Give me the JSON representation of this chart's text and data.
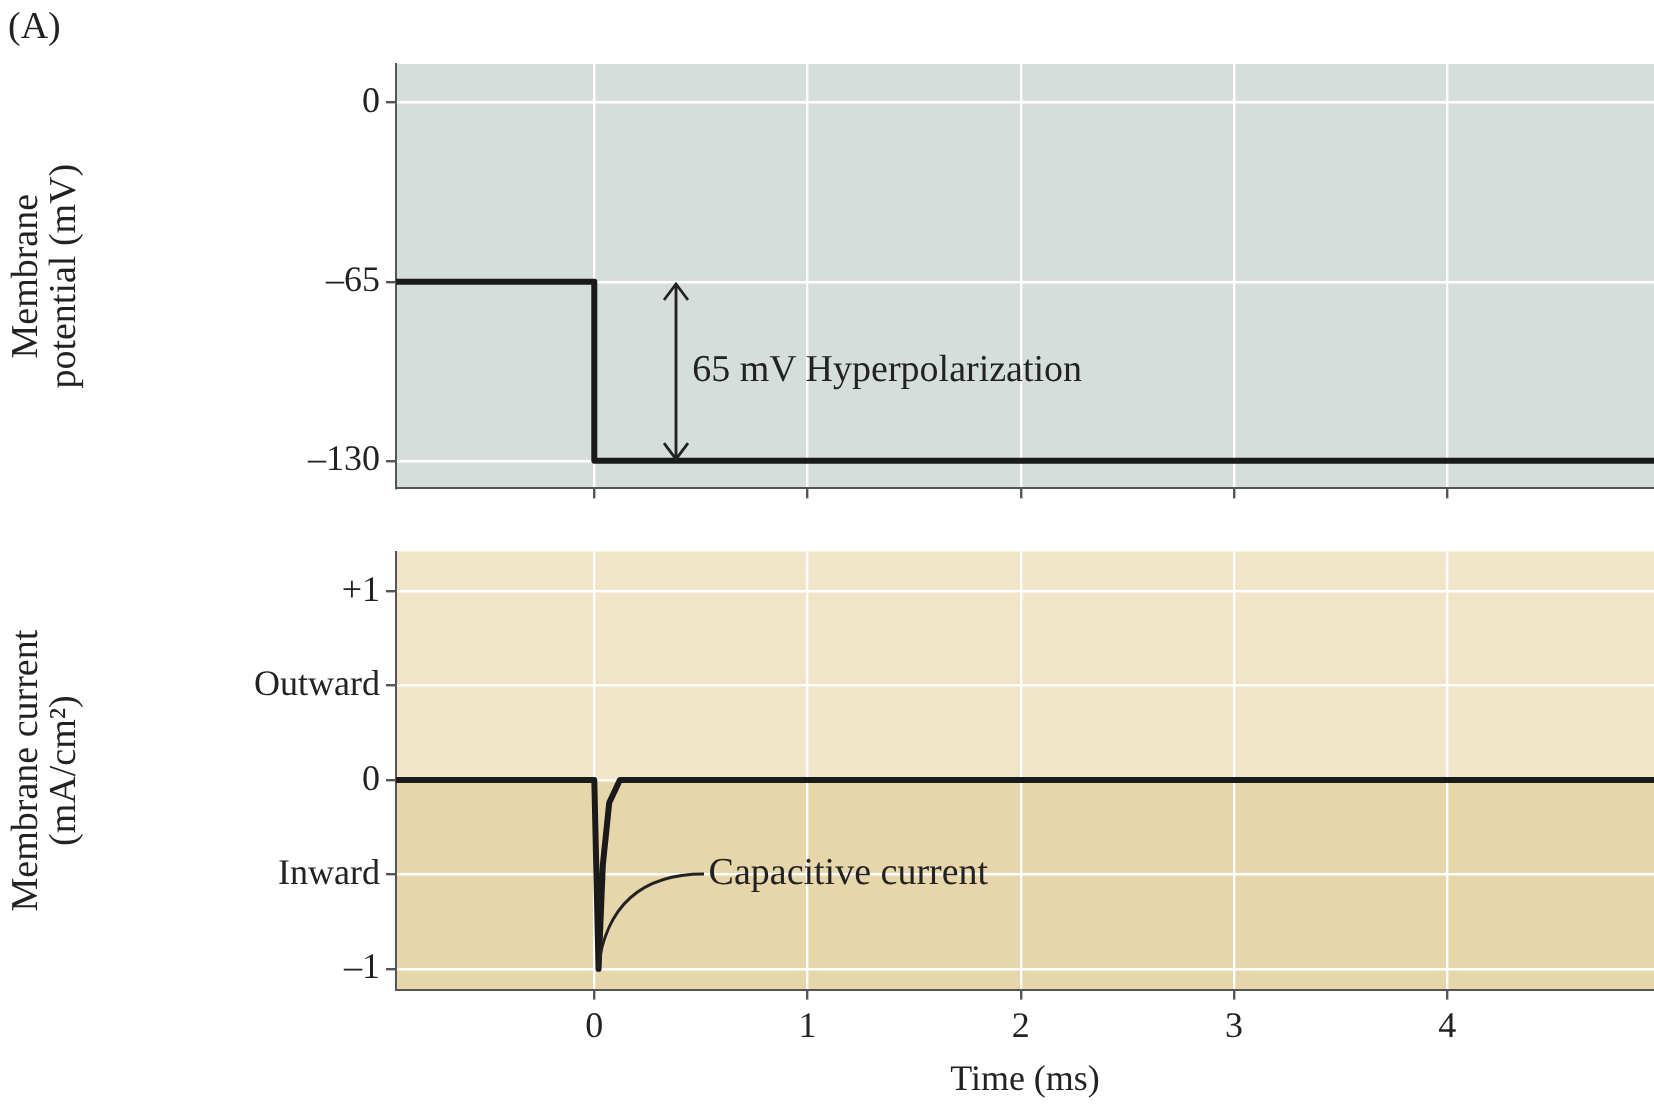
{
  "chart_data": [
    {
      "type": "line",
      "ylabel": "Membrane potential (mV)",
      "xlim": [
        -0.93,
        4.97
      ],
      "xticks": [
        0,
        1,
        2,
        3,
        4
      ],
      "ylim": [
        -140,
        14
      ],
      "yticks": [
        0,
        {
          "value": -65,
          "label": "–65"
        },
        {
          "value": -130,
          "label": "–130"
        }
      ],
      "tick_labels": "y",
      "grid": true,
      "legend": false,
      "marker": "none",
      "line_style": "solid",
      "series": [
        {
          "color": "#1a1a1a",
          "x": [
            -0.93,
            0,
            0,
            4.97
          ],
          "values": [
            -65,
            -65,
            -130,
            -130
          ]
        }
      ],
      "annotations": [
        "(A)",
        "65 mV Hyperpolarization"
      ]
    },
    {
      "type": "line",
      "xlabel": "Time (ms)",
      "ylabel": "Membrane current (mA/cm²)",
      "xlim": [
        -0.93,
        4.97
      ],
      "xticks": [
        0,
        1,
        2,
        3,
        4
      ],
      "ylim": [
        -1.11,
        1.21
      ],
      "yticks": [
        {
          "value": 1,
          "label": "+1"
        },
        {
          "value": 0.5,
          "label": "Outward"
        },
        0,
        {
          "value": -0.5,
          "label": "Inward"
        },
        {
          "value": -1,
          "label": "–1"
        }
      ],
      "grid": true,
      "legend": false,
      "marker": "none",
      "line_style": "solid",
      "bands": [
        {
          "axis": "y",
          "from": -1.11,
          "to": 0,
          "color": "#e6d6aa"
        }
      ],
      "series": [
        {
          "color": "#1a1a1a",
          "x": [
            -0.93,
            0,
            0.02,
            0.04,
            0.07,
            0.12,
            4.97
          ],
          "values": [
            0,
            0,
            -1,
            -0.45,
            -0.12,
            0,
            0
          ]
        }
      ],
      "annotations": [
        {
          "text": "Capacitive current",
          "x": 0.02,
          "y": -1
        }
      ]
    }
  ]
}
